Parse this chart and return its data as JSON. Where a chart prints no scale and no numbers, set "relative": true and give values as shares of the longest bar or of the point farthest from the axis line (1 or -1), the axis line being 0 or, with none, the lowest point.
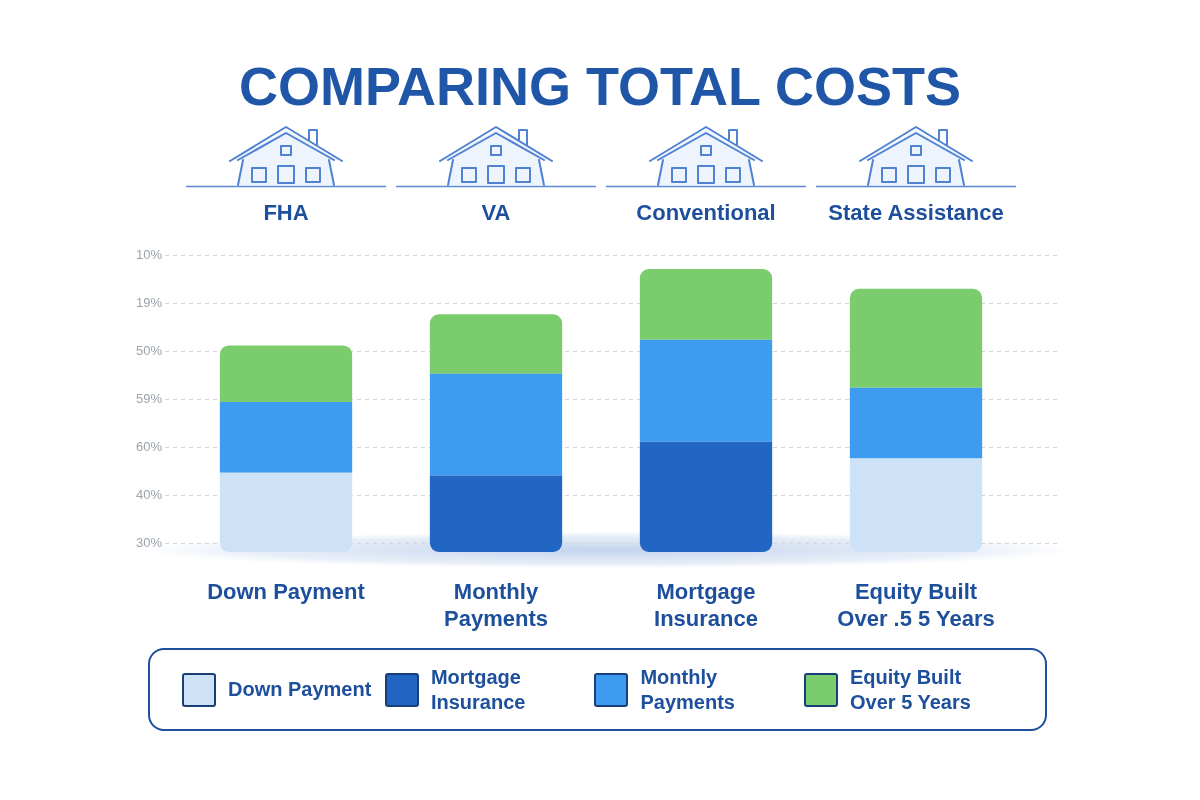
{
  "chart_data": {
    "type": "bar",
    "title": "COMPARING TOTAL COSTS",
    "categories": [
      "FHA",
      "VA",
      "Conventional",
      "State Assistance"
    ],
    "series": [
      {
        "name": "Down Payment",
        "color": "#cde1f7",
        "values": [
          0.28,
          null,
          null,
          0.33
        ]
      },
      {
        "name": "Mortgage Insurance",
        "color": "#2066c2",
        "values": [
          null,
          0.27,
          0.39,
          null
        ]
      },
      {
        "name": "Monthly Payments",
        "color": "#3d9bf0",
        "values": [
          0.25,
          0.36,
          0.36,
          0.25
        ]
      },
      {
        "name": "Equity Built Over 5 Years",
        "color": "#7acc6c",
        "values": [
          0.2,
          0.21,
          0.25,
          0.35
        ]
      }
    ],
    "stacked": true,
    "relative": true,
    "grid": "y",
    "legend": "bottom",
    "annotations": [
      "Down Payment",
      "Monthly Payments",
      "Mortgage Insurance",
      "Equity Built Over .5 5 Years",
      "10%",
      "19%",
      "50%",
      "59%",
      "60%",
      "40%",
      "30%"
    ]
  }
}
